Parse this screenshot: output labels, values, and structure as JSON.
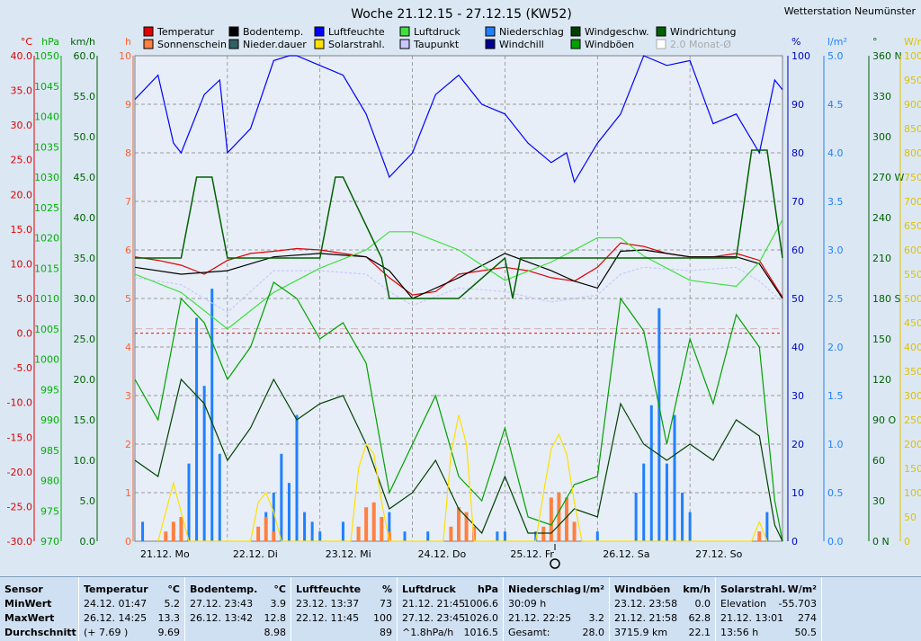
{
  "header": {
    "title": "Woche 21.12.15 - 27.12.15 (KW52)",
    "station": "Wetterstation Neumünster"
  },
  "legend": [
    {
      "label": "Temperatur",
      "color": "#e00000"
    },
    {
      "label": "Sonnenschein",
      "color": "#ff8040"
    },
    {
      "label": "Bodentemp.",
      "color": "#000000"
    },
    {
      "label": "Nieder.dauer",
      "color": "#306060"
    },
    {
      "label": "Luftfeuchte",
      "color": "#0000ff"
    },
    {
      "label": "Solarstrahl.",
      "color": "#ffe000"
    },
    {
      "label": "Luftdruck",
      "color": "#40e040"
    },
    {
      "label": "Taupunkt",
      "color": "#c8c8ff"
    },
    {
      "label": "Niederschlag",
      "color": "#2080ff"
    },
    {
      "label": "Windchill",
      "color": "#000090"
    },
    {
      "label": "Windgeschw.",
      "color": "#004000"
    },
    {
      "label": "Windböen",
      "color": "#00a000"
    },
    {
      "label": "Windrichtung",
      "color": "#006000"
    },
    {
      "label": "2.0 Monat-Ø",
      "color": "#ffffff",
      "disabled": true
    }
  ],
  "axes": {
    "left": [
      {
        "unit": "°C",
        "color": "#e00000",
        "ticks": [
          "40.0",
          "35.0",
          "30.0",
          "25.0",
          "20.0",
          "15.0",
          "10.0",
          "5.0",
          "0.0",
          "-5.0",
          "-10.0",
          "-15.0",
          "-20.0",
          "-25.0",
          "-30.0"
        ]
      },
      {
        "unit": "hPa",
        "color": "#00b000",
        "ticks": [
          "1050",
          "1045",
          "1040",
          "1035",
          "1030",
          "1025",
          "1020",
          "1015",
          "1010",
          "1005",
          "1000",
          "995",
          "990",
          "985",
          "980",
          "975",
          "970"
        ]
      },
      {
        "unit": "km/h",
        "color": "#006000",
        "ticks": [
          "60.0",
          "55.0",
          "50.0",
          "45.0",
          "40.0",
          "35.0",
          "30.0",
          "25.0",
          "20.0",
          "15.0",
          "10.0",
          "5.0",
          "0.0"
        ]
      },
      {
        "unit": "h",
        "color": "#ff6030",
        "ticks": [
          "10",
          "9",
          "8",
          "7",
          "6",
          "5",
          "4",
          "3",
          "2",
          "1",
          "0"
        ]
      }
    ],
    "right": [
      {
        "unit": "%",
        "color": "#0000c0",
        "ticks": [
          "100",
          "90",
          "80",
          "70",
          "60",
          "50",
          "40",
          "30",
          "20",
          "10",
          "0"
        ]
      },
      {
        "unit": "l/m²",
        "color": "#2080ff",
        "ticks": [
          "5.0",
          "4.5",
          "4.0",
          "3.5",
          "3.0",
          "2.5",
          "2.0",
          "1.5",
          "1.0",
          "0.5",
          "0.0"
        ]
      },
      {
        "unit": "°",
        "color": "#006000",
        "ticks": [
          "360 N",
          "330",
          "300",
          "270 W",
          "240",
          "210",
          "180 S",
          "150",
          "120",
          "90 O",
          "60",
          "30",
          "0 N"
        ]
      },
      {
        "unit": "W/m²",
        "color": "#e0c000",
        "ticks": [
          "1000",
          "950",
          "900",
          "850",
          "800",
          "750",
          "700",
          "650",
          "600",
          "550",
          "500",
          "450",
          "400",
          "350",
          "300",
          "250",
          "200",
          "150",
          "100",
          "50",
          "0"
        ]
      }
    ],
    "days": [
      "21.12. Mo",
      "22.12. Di",
      "23.12. Mi",
      "24.12. Do",
      "25.12. Fr",
      "26.12. Sa",
      "27.12. So"
    ]
  },
  "chart_data": {
    "type": "line",
    "title": "Woche 21.12.15 - 27.12.15 (KW52)",
    "x_unit": "hours since 21.12. 00:00",
    "xlim": [
      0,
      168
    ],
    "series": [
      {
        "name": "Temperatur",
        "unit": "°C",
        "x": [
          0,
          6,
          12,
          18,
          24,
          30,
          36,
          42,
          48,
          54,
          60,
          66,
          72,
          78,
          84,
          90,
          96,
          102,
          108,
          114,
          120,
          126,
          132,
          138,
          144,
          150,
          156,
          162,
          168
        ],
        "values": [
          11.0,
          10.5,
          9.8,
          8.5,
          10.5,
          11.5,
          11.8,
          12.2,
          12.0,
          11.5,
          11.0,
          8.0,
          5.5,
          6.0,
          8.5,
          9.0,
          9.5,
          9.0,
          8.0,
          7.5,
          9.5,
          13.0,
          12.5,
          11.5,
          11.0,
          11.0,
          11.5,
          10.5,
          5.2
        ]
      },
      {
        "name": "Bodentemp.",
        "unit": "°C",
        "x": [
          0,
          12,
          24,
          36,
          48,
          60,
          66,
          72,
          84,
          96,
          108,
          114,
          120,
          126,
          132,
          144,
          156,
          162,
          168
        ],
        "values": [
          9.5,
          8.5,
          9.0,
          11.0,
          11.5,
          11.0,
          9.0,
          5.0,
          8.0,
          11.5,
          9.0,
          7.5,
          6.5,
          11.8,
          12.0,
          11.0,
          11.0,
          10.0,
          5.0
        ]
      },
      {
        "name": "Taupunkt",
        "unit": "°C",
        "x": [
          0,
          12,
          24,
          36,
          48,
          60,
          66,
          72,
          84,
          96,
          108,
          114,
          120,
          126,
          132,
          144,
          156,
          162,
          168
        ],
        "values": [
          8.0,
          7.0,
          3.0,
          9.0,
          9.0,
          8.5,
          6.0,
          4.0,
          6.5,
          6.0,
          4.5,
          5.0,
          5.5,
          8.5,
          9.5,
          9.0,
          9.5,
          7.5,
          4.5
        ]
      },
      {
        "name": "Luftfeuchte",
        "unit": "%",
        "x": [
          0,
          6,
          10,
          12,
          18,
          22,
          24,
          30,
          36,
          40,
          42,
          48,
          54,
          60,
          66,
          72,
          78,
          84,
          90,
          96,
          102,
          108,
          112,
          114,
          120,
          126,
          132,
          138,
          144,
          150,
          156,
          162,
          166,
          168
        ],
        "values": [
          91,
          96,
          82,
          80,
          92,
          95,
          80,
          85,
          99,
          100,
          100,
          98,
          96,
          88,
          75,
          80,
          92,
          96,
          90,
          88,
          82,
          78,
          80,
          74,
          82,
          88,
          100,
          98,
          99,
          86,
          88,
          80,
          95,
          93
        ]
      },
      {
        "name": "Luftdruck",
        "unit": "hPa",
        "x": [
          0,
          12,
          24,
          36,
          48,
          60,
          66,
          72,
          84,
          96,
          108,
          120,
          126,
          132,
          144,
          156,
          162,
          168
        ],
        "values": [
          1014,
          1011,
          1005,
          1011,
          1015,
          1018,
          1021,
          1021,
          1018,
          1013,
          1016,
          1020,
          1020,
          1017,
          1013,
          1012,
          1016,
          1023
        ]
      },
      {
        "name": "Windböen",
        "unit": "km/h",
        "x": [
          0,
          6,
          12,
          18,
          24,
          30,
          36,
          42,
          48,
          54,
          60,
          66,
          72,
          78,
          84,
          90,
          96,
          102,
          108,
          114,
          120,
          126,
          132,
          138,
          144,
          150,
          156,
          162,
          166,
          168
        ],
        "values": [
          20,
          15,
          30,
          27,
          20,
          24,
          32,
          30,
          25,
          27,
          22,
          6,
          12,
          18,
          8,
          5,
          14,
          3,
          2,
          7,
          8,
          30,
          26,
          12,
          25,
          17,
          28,
          24,
          5,
          0
        ]
      },
      {
        "name": "Windgeschw.",
        "unit": "km/h",
        "x": [
          0,
          6,
          12,
          18,
          24,
          30,
          36,
          42,
          48,
          54,
          60,
          66,
          72,
          78,
          84,
          90,
          96,
          102,
          108,
          114,
          120,
          126,
          132,
          138,
          144,
          150,
          156,
          162,
          166,
          168
        ],
        "values": [
          10,
          8,
          20,
          17,
          10,
          14,
          20,
          15,
          17,
          18,
          12,
          4,
          6,
          10,
          4,
          1,
          8,
          1,
          1,
          4,
          3,
          17,
          12,
          10,
          12,
          10,
          15,
          13,
          2,
          0
        ]
      },
      {
        "name": "Windrichtung",
        "unit": "°",
        "x": [
          0,
          12,
          16,
          20,
          24,
          36,
          48,
          52,
          54,
          64,
          66,
          72,
          76,
          84,
          96,
          98,
          100,
          108,
          120,
          132,
          144,
          156,
          160,
          164,
          168
        ],
        "values": [
          210,
          210,
          270,
          270,
          210,
          210,
          210,
          270,
          270,
          210,
          180,
          180,
          180,
          180,
          210,
          180,
          210,
          210,
          210,
          210,
          210,
          210,
          290,
          290,
          210
        ]
      },
      {
        "name": "Niederschlag",
        "unit": "l/m²",
        "x": [
          2,
          14,
          16,
          18,
          20,
          22,
          34,
          36,
          38,
          40,
          42,
          44,
          46,
          48,
          54,
          58,
          62,
          66,
          70,
          76,
          82,
          94,
          96,
          104,
          120,
          130,
          132,
          134,
          136,
          138,
          140,
          142,
          144,
          162,
          164
        ],
        "values": [
          0.2,
          0.8,
          2.3,
          1.6,
          2.6,
          0.9,
          0.3,
          0.5,
          0.9,
          0.6,
          1.3,
          0.3,
          0.2,
          0.1,
          0.2,
          0.1,
          0.2,
          0.3,
          0.1,
          0.1,
          0.1,
          0.1,
          0.1,
          0.1,
          0.1,
          0.5,
          0.8,
          1.4,
          2.4,
          0.8,
          1.3,
          0.5,
          0.3,
          0.1,
          0.3
        ]
      },
      {
        "name": "Sonnenschein",
        "unit": "h",
        "x": [
          8,
          10,
          12,
          32,
          34,
          36,
          58,
          60,
          62,
          64,
          66,
          82,
          84,
          86,
          88,
          106,
          108,
          110,
          112,
          114,
          162
        ],
        "values": [
          0.2,
          0.4,
          0.5,
          0.3,
          0.5,
          0.2,
          0.3,
          0.7,
          0.8,
          0.5,
          0.2,
          0.3,
          0.7,
          0.6,
          0.3,
          0.3,
          0.9,
          1.0,
          0.9,
          0.4,
          0.2
        ]
      },
      {
        "name": "Solarstrahl.",
        "unit": "W/m²",
        "x": [
          6,
          8,
          10,
          12,
          14,
          30,
          32,
          34,
          36,
          38,
          56,
          58,
          60,
          62,
          64,
          66,
          80,
          82,
          84,
          86,
          88,
          104,
          106,
          108,
          110,
          112,
          114,
          116,
          160,
          162,
          164
        ],
        "values": [
          0,
          60,
          120,
          60,
          0,
          0,
          80,
          100,
          60,
          0,
          0,
          150,
          200,
          180,
          80,
          0,
          0,
          180,
          260,
          200,
          0,
          0,
          100,
          190,
          220,
          180,
          80,
          0,
          0,
          40,
          0
        ]
      }
    ],
    "grid": true,
    "legend": "top"
  },
  "stats": {
    "columns": [
      {
        "header": "Sensor",
        "unit": "",
        "rows": [
          "MinWert",
          "MaxWert",
          "Durchschnitt"
        ]
      },
      {
        "header": "Temperatur",
        "unit": "°C",
        "rows": [
          [
            "24.12.  01:47",
            "5.2"
          ],
          [
            "26.12.  14:25",
            "13.3"
          ],
          [
            "(+ 7.69 )",
            "9.69"
          ]
        ]
      },
      {
        "header": "Bodentemp.",
        "unit": "°C",
        "rows": [
          [
            "27.12.  23:43",
            "3.9"
          ],
          [
            "26.12.  13:42",
            "12.8"
          ],
          [
            "",
            "8.98"
          ]
        ]
      },
      {
        "header": "Luftfeuchte",
        "unit": "%",
        "rows": [
          [
            "23.12.  13:37",
            "73"
          ],
          [
            "22.12.  11:45",
            "100"
          ],
          [
            "",
            "89"
          ]
        ]
      },
      {
        "header": "Luftdruck",
        "unit": "hPa",
        "rows": [
          [
            "21.12.  21:45",
            "1006.6"
          ],
          [
            "27.12.  23:45",
            "1026.0"
          ],
          [
            "^1.8hPa/h",
            "1016.5"
          ]
        ]
      },
      {
        "header": "Niederschlag",
        "unit": "l/m²",
        "rows": [
          [
            "30:09 h",
            ""
          ],
          [
            "21.12.  22:25",
            "3.2"
          ],
          [
            "Gesamt:",
            "28.0"
          ]
        ]
      },
      {
        "header": "Windböen",
        "unit": "km/h",
        "rows": [
          [
            "23.12.  23:58",
            "0.0"
          ],
          [
            "21.12.  21:58",
            "62.8"
          ],
          [
            "3715.9 km",
            "22.1"
          ]
        ]
      },
      {
        "header": "Solarstrahl.",
        "unit": "W/m²",
        "rows": [
          [
            "Elevation",
            "-55.703"
          ],
          [
            "21.12.  13:01",
            "274"
          ],
          [
            "13:56 h",
            "50.5"
          ]
        ]
      }
    ]
  }
}
